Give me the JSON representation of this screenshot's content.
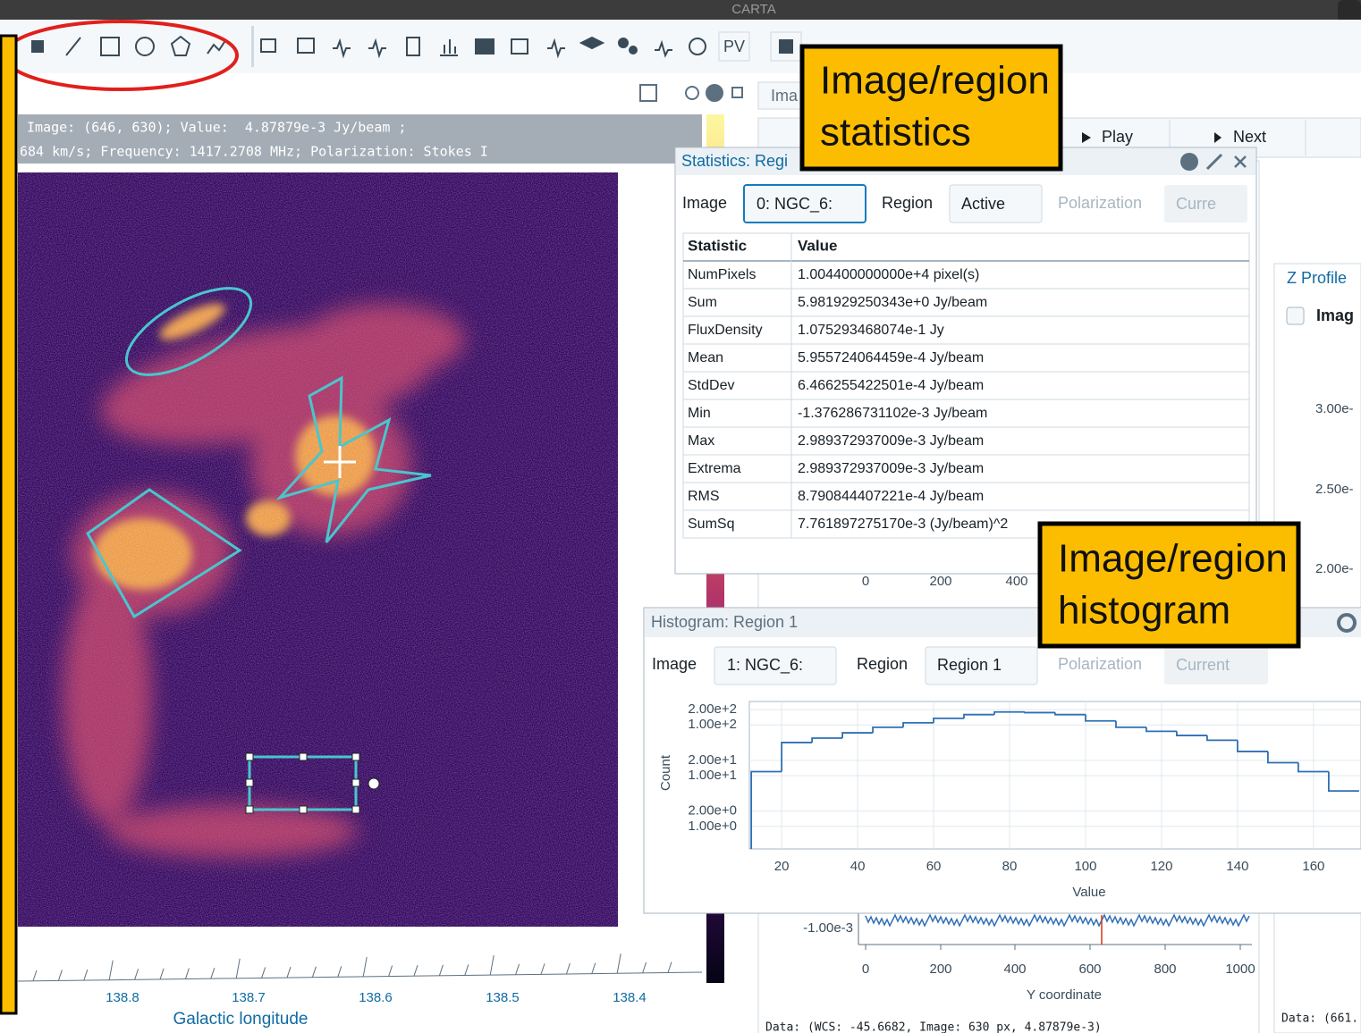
{
  "window": {
    "title": "CARTA"
  },
  "toolbar": {
    "pv_button": "PV"
  },
  "image_view": {
    "cursor_info": [
      "Image: (646, 630); Value:  4.87879e-3 Jy/beam ;",
      "684 km/s; Frequency: 1417.2708 MHz; Polarization: Stokes I"
    ],
    "x_ticks": [
      "138.8",
      "138.7",
      "138.6",
      "138.5",
      "138.4"
    ],
    "x_label": "Galactic longitude"
  },
  "animator": {
    "tab": "Ima",
    "play": "Play",
    "next": "Next"
  },
  "z_profile": {
    "title": "Z Profile",
    "checkbox_label": "Imag",
    "y_ticks": [
      "3.00e-",
      "2.50e-",
      "2.00e-"
    ],
    "data_info": "Data: (661."
  },
  "spatial_profile": {
    "top_x_ticks": [
      "0",
      "200",
      "400"
    ],
    "y_tick": "-1.00e-3",
    "x_ticks": [
      "0",
      "200",
      "400",
      "600",
      "800",
      "1000"
    ],
    "x_label": "Y coordinate",
    "data_info": "Data: (WCS: -45.6682, Image: 630 px, 4.87879e-3)"
  },
  "statistics": {
    "title": "Statistics: Regi",
    "image_label": "Image",
    "image_select": "0: NGC_6:",
    "region_label": "Region",
    "region_select": "Active",
    "polarization_label": "Polarization",
    "polarization_select": "Curre",
    "table": {
      "header": [
        "Statistic",
        "Value"
      ],
      "rows": [
        [
          "NumPixels",
          "1.004400000000e+4 pixel(s)"
        ],
        [
          "Sum",
          "5.981929250343e+0 Jy/beam"
        ],
        [
          "FluxDensity",
          "1.075293468074e-1 Jy"
        ],
        [
          "Mean",
          "5.955724064459e-4 Jy/beam"
        ],
        [
          "StdDev",
          "6.466255422501e-4 Jy/beam"
        ],
        [
          "Min",
          "-1.376286731102e-3 Jy/beam"
        ],
        [
          "Max",
          "2.989372937009e-3 Jy/beam"
        ],
        [
          "Extrema",
          "2.989372937009e-3 Jy/beam"
        ],
        [
          "RMS",
          "8.790844407221e-4 Jy/beam"
        ],
        [
          "SumSq",
          "7.761897275170e-3 (Jy/beam)^2"
        ]
      ]
    }
  },
  "histogram_panel": {
    "title": "Histogram: Region 1",
    "image_label": "Image",
    "image_select": "1: NGC_6:",
    "region_label": "Region",
    "region_select": "Region 1",
    "polarization_label": "Polarization",
    "polarization_select": "Current"
  },
  "chart_data": {
    "type": "histogram",
    "xlabel": "Value",
    "ylabel": "Count",
    "bins": [
      12,
      20,
      28,
      36,
      44,
      52,
      60,
      68,
      76,
      84,
      92,
      100,
      108,
      116,
      124,
      132,
      140,
      148,
      156,
      164,
      172
    ],
    "values": [
      12,
      45,
      55,
      70,
      90,
      110,
      135,
      160,
      180,
      175,
      160,
      120,
      90,
      75,
      62,
      50,
      30,
      18,
      12,
      5
    ],
    "color": "#2f6fb5",
    "log_y": true,
    "grid": true,
    "xlim": [
      11.5,
      172.5
    ],
    "ylim": [
      0.36,
      290
    ],
    "xticks": [
      20,
      40,
      60,
      80,
      100,
      120,
      140,
      160
    ],
    "yticks": [
      {
        "value": 200,
        "label": "2.00e+2"
      },
      {
        "value": 100,
        "label": "1.00e+2"
      },
      {
        "value": 20,
        "label": "2.00e+1"
      },
      {
        "value": 10,
        "label": "1.00e+1"
      },
      {
        "value": 2,
        "label": "2.00e+0"
      },
      {
        "value": 1,
        "label": "1.00e+0"
      }
    ]
  },
  "callouts": [
    [
      "Image/region",
      "statistics"
    ],
    [
      "Image/region",
      "histogram"
    ]
  ]
}
